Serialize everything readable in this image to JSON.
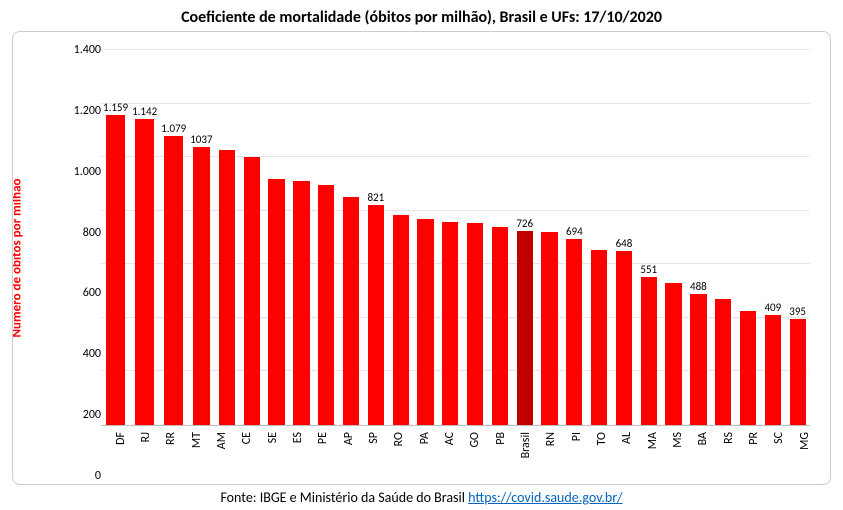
{
  "chart": {
    "type": "bar",
    "title": "Coeficiente de mortalidade (óbitos por milhão), Brasil e UFs: 17/10/2020",
    "title_fontsize": 16,
    "title_fontweight": "bold",
    "ylabel": "Número de óbitos por milhão",
    "ylabel_color": "#ff0000",
    "ylabel_fontsize": 13,
    "ylabel_fontweight": "bold",
    "ylim": [
      0,
      1400
    ],
    "yticks": [
      0,
      200,
      400,
      600,
      800,
      1000,
      1200,
      1400
    ],
    "ytick_labels": [
      "0",
      "200",
      "400",
      "600",
      "800",
      "1.000",
      "1.200",
      "1.400"
    ],
    "ytick_fontsize": 12,
    "xtick_fontsize": 12,
    "xtick_rotation": -90,
    "grid_color": "#e6e6e6",
    "border_color": "#cccccc",
    "border_radius": 8,
    "background_color": "#ffffff",
    "bar_width": 0.78,
    "default_bar_color": "#ff0000",
    "highlight_bar_color": "#c00000",
    "data_label_fontsize": 11,
    "data_label_color": "#000000",
    "categories": [
      "DF",
      "RJ",
      "RR",
      "MT",
      "AM",
      "CE",
      "SE",
      "ES",
      "PE",
      "AP",
      "SP",
      "RO",
      "PA",
      "AC",
      "GO",
      "PB",
      "Brasil",
      "RN",
      "PI",
      "TO",
      "AL",
      "MA",
      "MS",
      "BA",
      "RS",
      "PR",
      "SC",
      "MG"
    ],
    "values": [
      1159,
      1142,
      1079,
      1037,
      1025,
      1000,
      920,
      910,
      895,
      850,
      821,
      785,
      770,
      758,
      755,
      740,
      726,
      720,
      694,
      655,
      648,
      551,
      530,
      488,
      470,
      425,
      409,
      395
    ],
    "show_label": [
      true,
      true,
      true,
      true,
      false,
      false,
      false,
      false,
      false,
      false,
      true,
      false,
      false,
      false,
      false,
      false,
      true,
      false,
      true,
      false,
      true,
      true,
      false,
      true,
      false,
      false,
      true,
      true
    ],
    "value_labels": [
      "1.159",
      "1.142",
      "1.079",
      "1037",
      "",
      "",
      "",
      "",
      "",
      "",
      "821",
      "",
      "",
      "",
      "",
      "",
      "726",
      "",
      "694",
      "",
      "648",
      "551",
      "",
      "488",
      "",
      "",
      "409",
      "395"
    ],
    "highlight_index": 16
  },
  "source": {
    "prefix": "Fonte: IBGE e Ministério da Saúde do Brasil ",
    "link_text": "https://covid.saude.gov.br/",
    "link_href": "https://covid.saude.gov.br/"
  }
}
